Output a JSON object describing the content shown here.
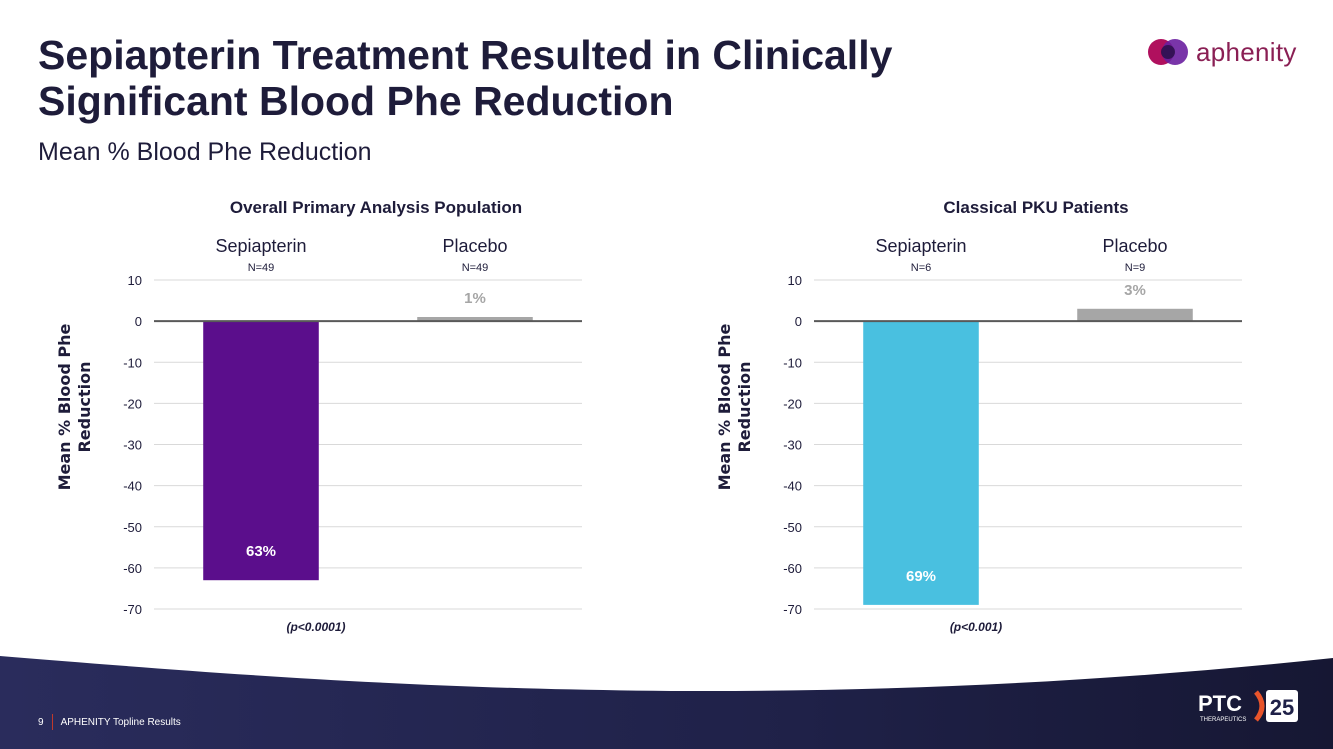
{
  "slide": {
    "title": "Sepiapterin Treatment Resulted in Clinically Significant Blood Phe Reduction",
    "subtitle": "Mean % Blood Phe Reduction",
    "logo_text": "aphenity",
    "page_number": "9",
    "footer_text": "APHENITY Topline Results",
    "ptc_text": "PTC",
    "ptc_sub": "THERAPEUTICS",
    "ptc_badge": "25"
  },
  "chart_data": [
    {
      "type": "bar",
      "title": "Overall Primary Analysis Population",
      "ylabel": "Mean % Blood Phe Reduction",
      "categories": [
        "Sepiapterin",
        "Placebo"
      ],
      "n_labels": [
        "N=49",
        "N=49"
      ],
      "values": [
        -63,
        1
      ],
      "data_labels": [
        "63%",
        "1%"
      ],
      "colors": [
        "#5b0e8c",
        "#a6a6a6"
      ],
      "label_colors": [
        "#ffffff",
        "#a6a6a6"
      ],
      "yticks": [
        10,
        0,
        -10,
        -20,
        -30,
        -40,
        -50,
        -60,
        -70
      ],
      "ylim": [
        -70,
        10
      ],
      "grid": true,
      "annotation": "(p<0.0001)"
    },
    {
      "type": "bar",
      "title": "Classical PKU Patients",
      "ylabel": "Mean % Blood Phe Reduction",
      "categories": [
        "Sepiapterin",
        "Placebo"
      ],
      "n_labels": [
        "N=6",
        "N=9"
      ],
      "values": [
        -69,
        3
      ],
      "data_labels": [
        "69%",
        "3%"
      ],
      "colors": [
        "#49c0e0",
        "#a6a6a6"
      ],
      "label_colors": [
        "#ffffff",
        "#a6a6a6"
      ],
      "yticks": [
        10,
        0,
        -10,
        -20,
        -30,
        -40,
        -50,
        -60,
        -70
      ],
      "ylim": [
        -70,
        10
      ],
      "grid": true,
      "annotation": "(p<0.001)"
    }
  ]
}
